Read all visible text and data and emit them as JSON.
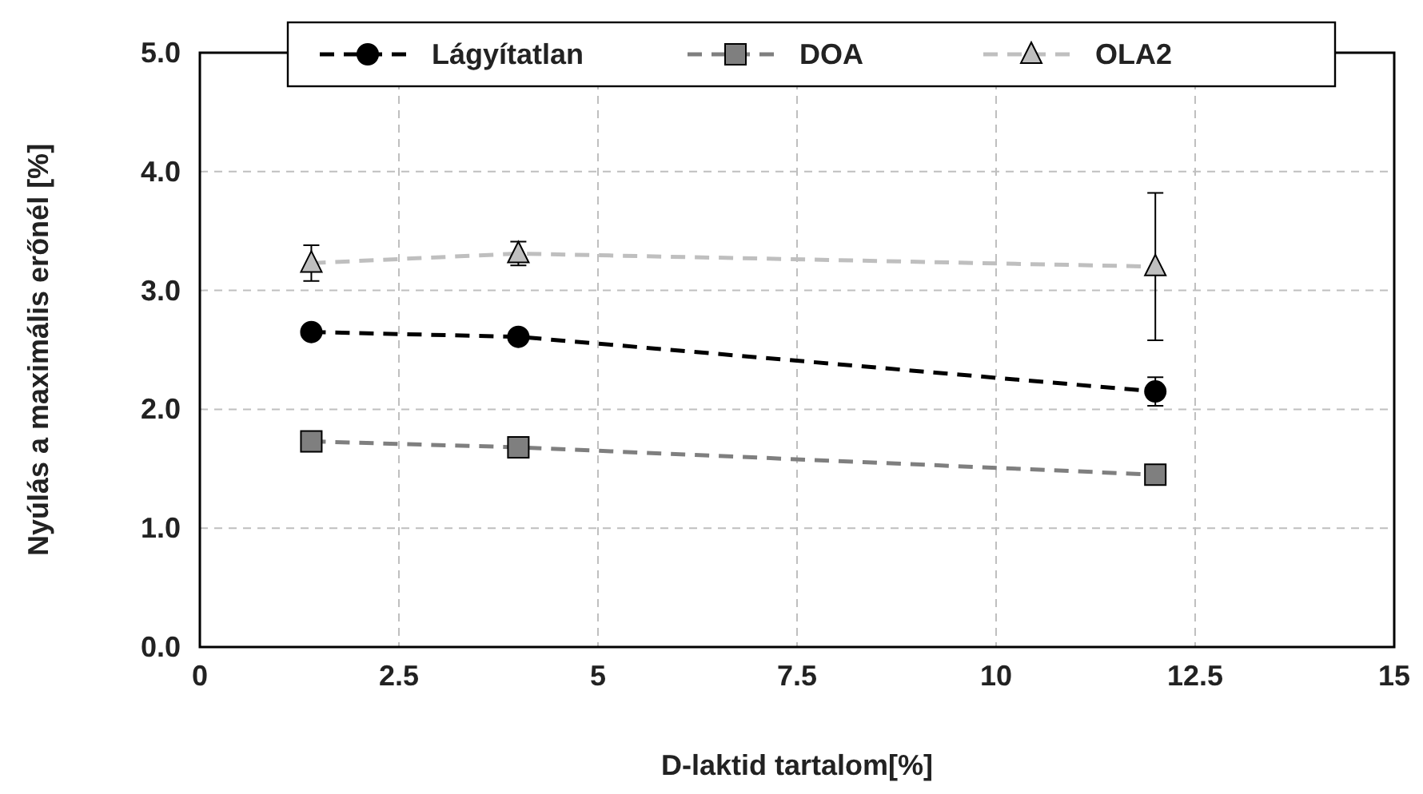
{
  "chart_data": {
    "type": "line",
    "xlabel": "D-laktid tartalom[%]",
    "ylabel": "Nyúlás a maximális erőnél [%]",
    "x": [
      1.4,
      4,
      12
    ],
    "series": [
      {
        "name": "Lágyítatlan",
        "color": "#000000",
        "marker": "circle",
        "values": [
          2.65,
          2.61,
          2.15
        ],
        "errors": [
          null,
          null,
          0.12
        ]
      },
      {
        "name": "DOA",
        "color": "#7f7f7f",
        "marker": "square",
        "values": [
          1.73,
          1.68,
          1.45
        ],
        "errors": [
          null,
          null,
          null
        ]
      },
      {
        "name": "OLA2",
        "color": "#bfbfbf",
        "marker": "triangle",
        "values": [
          3.23,
          3.31,
          3.2
        ],
        "errors": [
          0.15,
          0.1,
          0.62
        ]
      }
    ],
    "xlim": [
      0,
      15
    ],
    "xticks": [
      0,
      2.5,
      5,
      7.5,
      10,
      12.5,
      15
    ],
    "ylim": [
      0,
      5
    ],
    "yticks": [
      {
        "value": 0,
        "label": "0.0"
      },
      {
        "value": 1,
        "label": "1.0"
      },
      {
        "value": 2,
        "label": "2.0"
      },
      {
        "value": 3,
        "label": "3.0"
      },
      {
        "value": 4,
        "label": "4.0"
      },
      {
        "value": 5,
        "label": "5.0"
      }
    ],
    "grid": true,
    "legend": "top",
    "line_style": "dashed"
  }
}
